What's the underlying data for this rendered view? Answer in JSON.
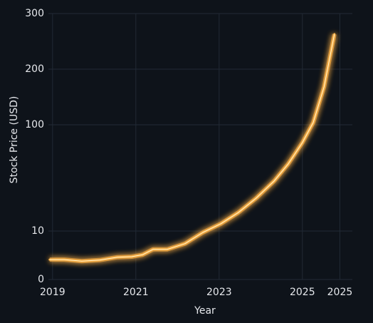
{
  "chart_data": {
    "type": "line",
    "x_label": "Year",
    "y_label": "Stock Price (USD)",
    "x": [
      2018.93,
      2019.28,
      2019.7,
      2020.13,
      2020.56,
      2020.9,
      2021.16,
      2021.41,
      2021.75,
      2022.18,
      2022.61,
      2023.04,
      2023.46,
      2023.89,
      2024.32,
      2024.66,
      2025.0,
      2025.26,
      2025.52,
      2025.77
    ],
    "series": [
      {
        "name": "Stock Price",
        "color": "#ffb347",
        "values": [
          4.1,
          4.1,
          3.8,
          4.0,
          4.6,
          4.7,
          5.1,
          6.2,
          6.2,
          7.4,
          9.7,
          11.7,
          14.9,
          20.4,
          29.5,
          42.8,
          67.9,
          104,
          168,
          263
        ]
      }
    ],
    "xlim": [
      2018.9,
      2026.2
    ],
    "xticks": [
      2019,
      2021,
      2023,
      2025,
      {
        "value": 2025.9,
        "label": "2025"
      }
    ],
    "ylim": [
      0,
      300
    ],
    "yticks": [
      0,
      10,
      100,
      200,
      300
    ],
    "grid": true
  }
}
